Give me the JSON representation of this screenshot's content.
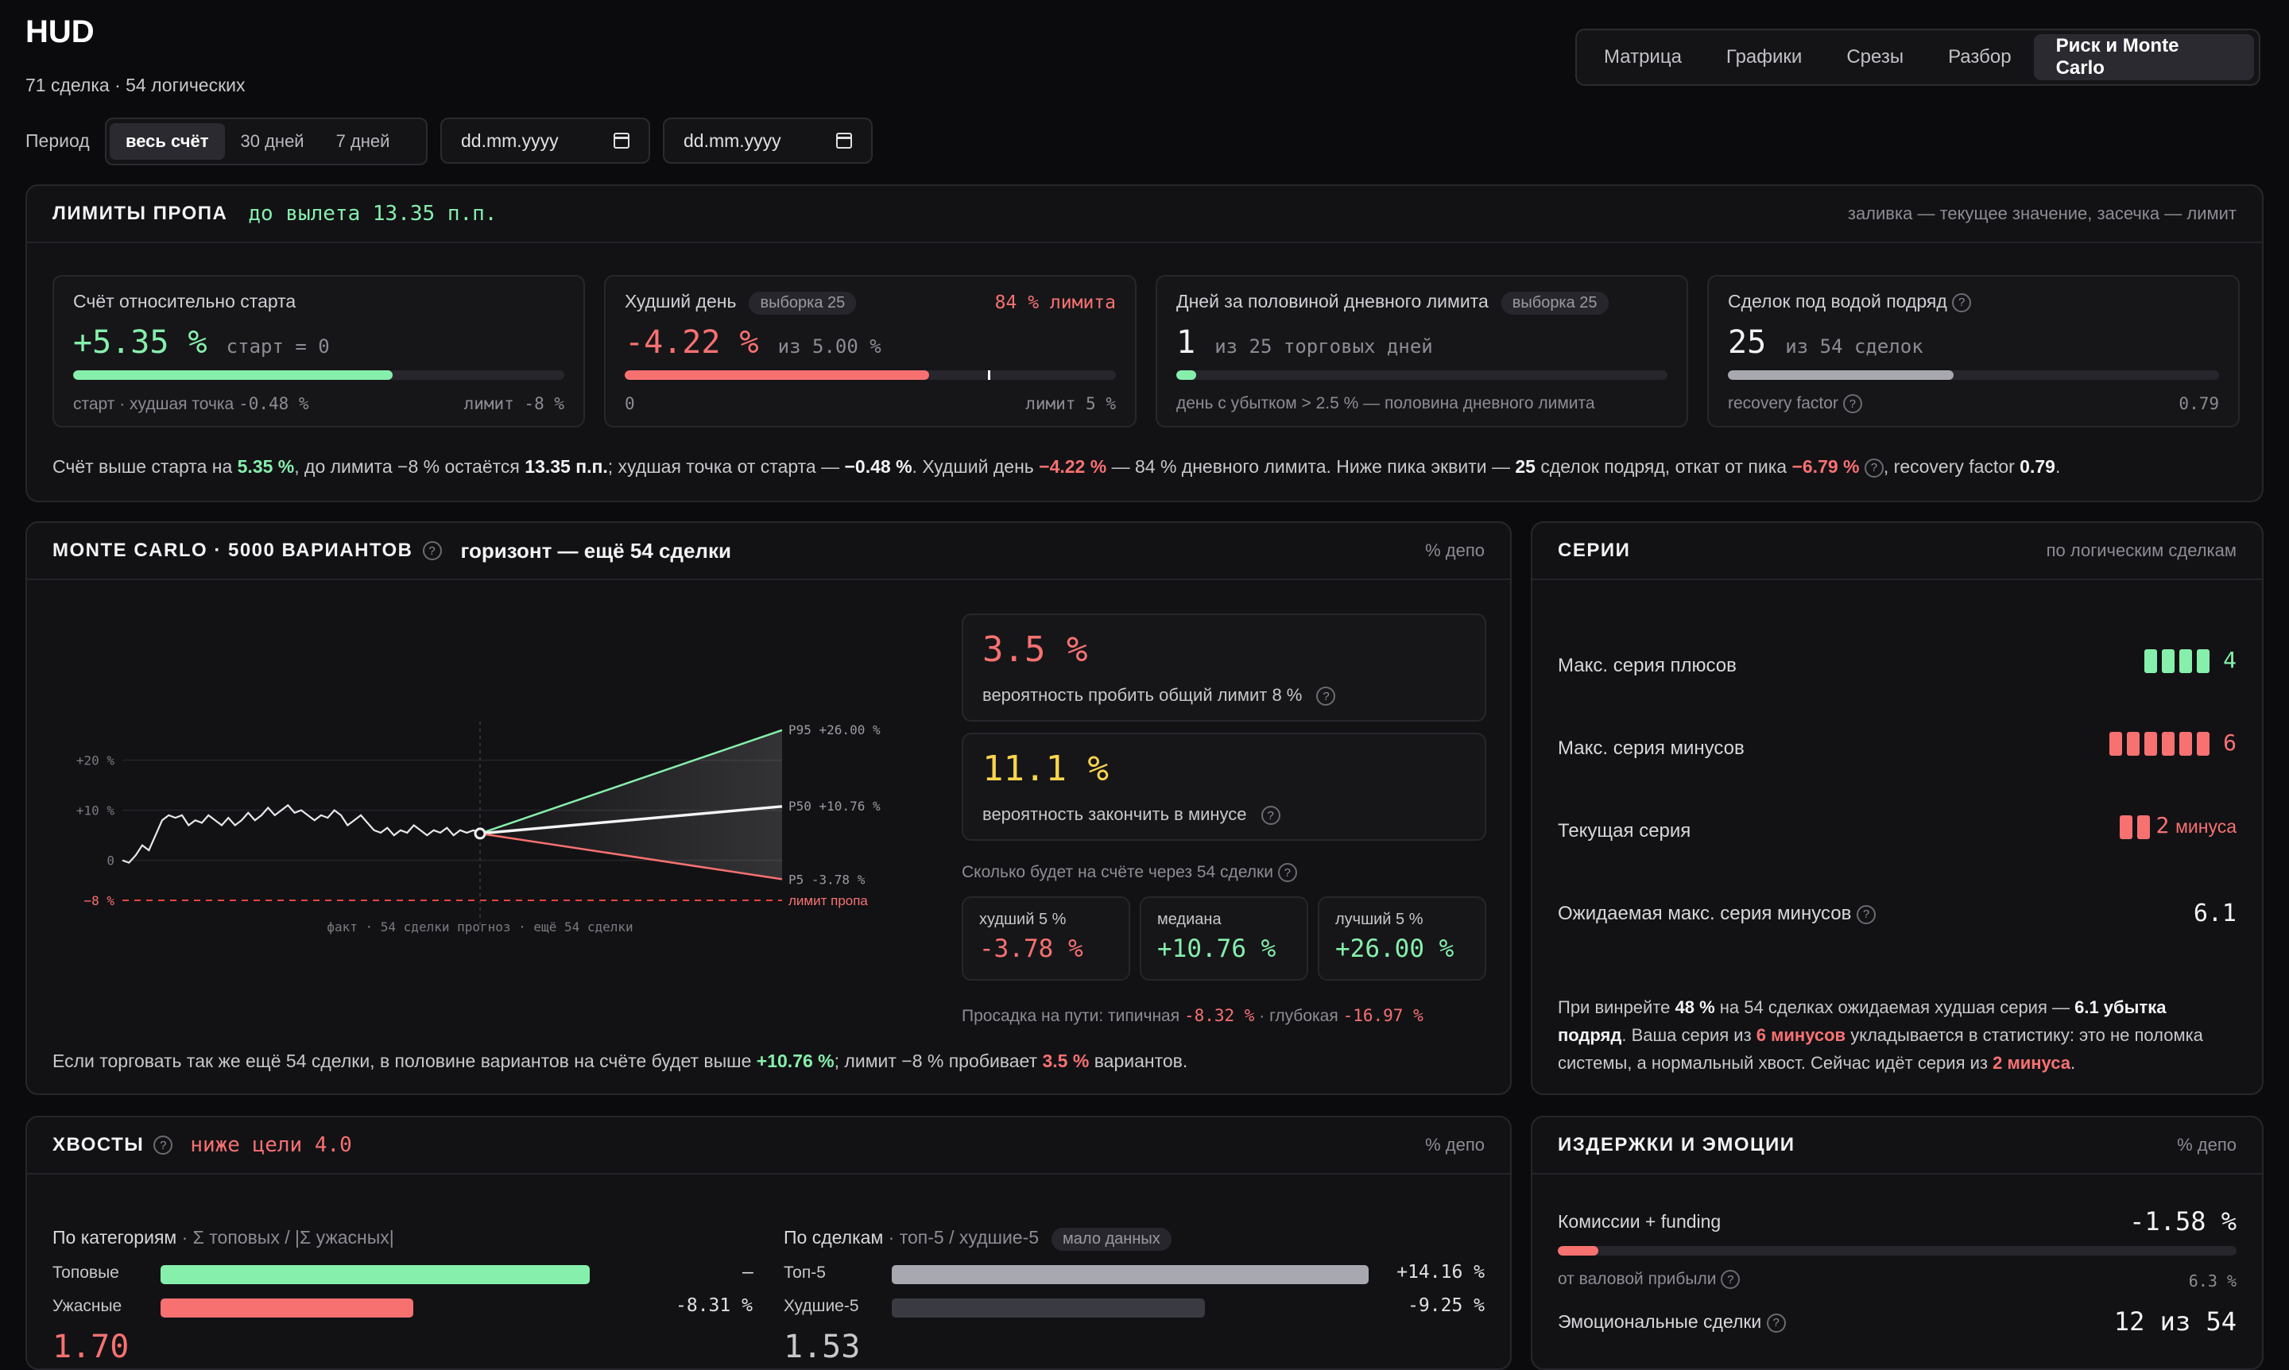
{
  "header": {
    "title": "HUD",
    "subtitle": "71 сделка · 54 логических"
  },
  "tabs": [
    "Матрица",
    "Графики",
    "Срезы",
    "Разбор",
    "Риск и Monte Carlo"
  ],
  "period": {
    "label": "Период",
    "options": [
      "весь счёт",
      "30 дней",
      "7 дней"
    ],
    "date_from": "dd.mm.yyyy",
    "date_to": "dd.mm.yyyy"
  },
  "limits": {
    "title": "ЛИМИТЫ ПРОПА",
    "headline": "до вылета 13.35 п.п.",
    "note": "заливка — текущее значение, засечка — лимит",
    "cards": [
      {
        "title": "Счёт относительно старта",
        "value": "+5.35 %",
        "sub": "старт = 0",
        "fill": 0.65,
        "foot_left": "старт · худшая точка",
        "foot_left_val": "-0.48 %",
        "foot_right": "лимит -8 %"
      },
      {
        "title": "Худший день",
        "chip": "выборка 25",
        "badge": "84 % лимита",
        "value": "-4.22 %",
        "sub": "из 5.00 %",
        "fill": 0.62,
        "foot_left": "0",
        "foot_right": "лимит 5 %"
      },
      {
        "title": "Дней за половиной дневного лимита",
        "chip": "выборка 25",
        "value": "1",
        "sub": "из 25 торговых дней",
        "fill": 0.04,
        "foot_left": "день с убытком > 2.5 % — половина дневного лимита"
      },
      {
        "title": "Сделок под водой подряд",
        "value": "25",
        "sub": "из 54 сделок",
        "fill": 0.46,
        "foot_left": "recovery factor",
        "foot_right": "0.79"
      }
    ],
    "summary": {
      "t1": "Счёт выше старта на ",
      "v1": "5.35 %",
      "t2": ", до лимита −8 % остаётся ",
      "v2": "13.35 п.п.",
      "t3": "; худшая точка от старта — ",
      "v3": "−0.48 %",
      "t4": ". Худший день ",
      "v4": "−4.22 %",
      "t5": " — 84 % дневного лимита. Ниже пика эквити — ",
      "v5": "25",
      "t6": " сделок подряд, откат от пика ",
      "v6": "−6.79 %",
      "t7": ", recovery factor ",
      "v7": "0.79",
      "t8": "."
    }
  },
  "monte_carlo": {
    "title": "MONTE CARLO · 5000 ВАРИАНТОВ",
    "horizon": "горизонт — ещё 54 сделки",
    "note": "% депо",
    "prob_break": {
      "value": "3.5 %",
      "label": "вероятность пробить общий лимит 8 %"
    },
    "prob_loss": {
      "value": "11.1 %",
      "label": "вероятность закончить в минусе"
    },
    "dist_title": "Сколько будет на счёте через 54 сделки",
    "dist": [
      {
        "label": "худший 5 %",
        "value": "-3.78 %"
      },
      {
        "label": "медиана",
        "value": "+10.76 %"
      },
      {
        "label": "лучший 5 %",
        "value": "+26.00 %"
      }
    ],
    "drawdown": {
      "label": "Просадка на пути: типичная",
      "typical": "-8.32 %",
      "mid": "· глубокая",
      "deep": "-16.97 %"
    },
    "summary": {
      "t1": "Если торговать так же ещё 54 сделки, в половине вариантов на счёте будет выше ",
      "v1": "+10.76 %",
      "t2": "; лимит −8 % пробивает ",
      "v2": "3.5 %",
      "t3": " вариантов."
    },
    "chart_labels": {
      "y20": "+20 %",
      "y10": "+10 %",
      "y0": "0",
      "ylim": "−8 %",
      "p95": "P95 +26.00 %",
      "p50": "P50 +10.76 %",
      "p5": "P5 -3.78 %",
      "limit": "лимит пропа",
      "x": "факт · 54 сделки   прогноз · ещё 54 сделки"
    }
  },
  "chart_data": {
    "type": "line",
    "x_label": "факт · 54 сделки   прогноз · ещё 54 сделки",
    "ylim": [
      -8,
      30
    ],
    "fact": [
      0,
      -0.48,
      1,
      3,
      2,
      5,
      8,
      9,
      8.5,
      9,
      7,
      8,
      7.5,
      9,
      8,
      7,
      8.5,
      7,
      8,
      9.5,
      8,
      9,
      10.5,
      9,
      10,
      11,
      9.5,
      10,
      9,
      8,
      9,
      8.5,
      10,
      9,
      7,
      8,
      9,
      7.5,
      6,
      5.5,
      6.5,
      5,
      6,
      5.5,
      7,
      6,
      5,
      6,
      5.5,
      6.5,
      5,
      6,
      5.5,
      6,
      5.35
    ],
    "forecast": {
      "start": 5.35,
      "p95": 26.0,
      "p50": 10.76,
      "p5": -3.78,
      "limit": -8
    }
  },
  "series": {
    "title": "СЕРИИ",
    "note": "по логическим сделкам",
    "rows": [
      {
        "label": "Макс. серия плюсов",
        "count": 4,
        "value": "4",
        "color": "#86efac"
      },
      {
        "label": "Макс. серия минусов",
        "count": 6,
        "value": "6",
        "color": "#f87171"
      },
      {
        "label": "Текущая серия",
        "count": 2,
        "value": "2",
        "unit": "минуса",
        "color": "#f87171"
      },
      {
        "label": "Ожидаемая макс. серия минусов",
        "value": "6.1"
      }
    ],
    "summary": {
      "t1": "При винрейте ",
      "v1": "48 %",
      "t2": " на 54 сделках ожидаемая худшая серия — ",
      "v2": "6.1 убытка подряд",
      "t3": ". Ваша серия из ",
      "v3": "6 минусов",
      "t4": " укладывается в статистику: это не поломка системы, а нормальный хвост. Сейчас идёт серия из ",
      "v4": "2 минуса",
      "t5": "."
    }
  },
  "tails": {
    "title": "ХВОСТЫ",
    "headline": "ниже цели 4.0",
    "note": "% депо",
    "cat_title": "По категориям",
    "cat_sub": "· Σ топовых / |Σ ужасных|",
    "cats": [
      {
        "label": "Топовые",
        "value": "—",
        "fill": 0.9,
        "color": "#86efac"
      },
      {
        "label": "Ужасные",
        "value": "-8.31 %",
        "fill": 0.53,
        "color": "#f87171"
      }
    ],
    "cat_ratio": "1.70",
    "deal_title": "По сделкам",
    "deal_sub": "· топ-5 / худшие-5",
    "deal_chip": "мало данных",
    "deals": [
      {
        "label": "Топ-5",
        "value": "+14.16 %",
        "fill": 0.99,
        "color": "#a8a8b0"
      },
      {
        "label": "Худшие-5",
        "value": "-9.25 %",
        "fill": 0.65,
        "color": "#3a3a42"
      }
    ],
    "deal_ratio": "1.53"
  },
  "costs": {
    "title": "ИЗДЕРЖКИ И ЭМОЦИИ",
    "note": "% депо",
    "fees_label": "Комиссии + funding",
    "fees_value": "-1.58 %",
    "fees_fill": 0.06,
    "fees_sub": "от валовой прибыли",
    "fees_sub_val": "6.3 %",
    "emo_label": "Эмоциональные сделки",
    "emo_value": "12 из 54"
  }
}
